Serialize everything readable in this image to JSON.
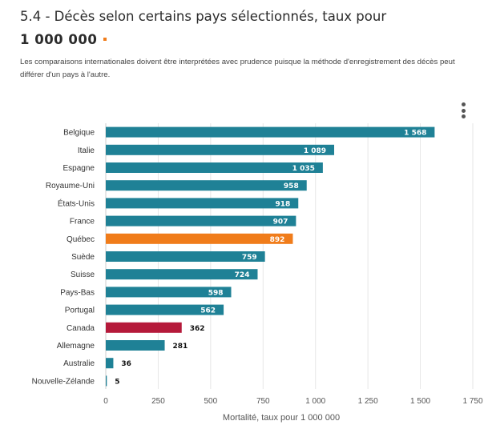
{
  "header": {
    "title_text": "5.4 - Décès selon certains pays sélectionnés, taux pour",
    "title_number": "1 000 000",
    "description": "Les comparaisons internationales doivent être interprétées avec prudence puisque la méthode d'enregistrement des décès peut différer d'un pays à l'autre.",
    "marker_color": "#f07c1a"
  },
  "menu": {
    "icon": "kebab-menu-icon"
  },
  "chart_data": {
    "type": "bar",
    "orientation": "horizontal",
    "categories": [
      "Belgique",
      "Italie",
      "Espagne",
      "Royaume-Uni",
      "États-Unis",
      "France",
      "Québec",
      "Suède",
      "Suisse",
      "Pays-Bas",
      "Portugal",
      "Canada",
      "Allemagne",
      "Australie",
      "Nouvelle-Zélande"
    ],
    "values": [
      1568,
      1089,
      1035,
      958,
      918,
      907,
      892,
      759,
      724,
      598,
      562,
      362,
      281,
      36,
      5
    ],
    "value_labels": [
      "1 568",
      "1 089",
      "1 035",
      "958",
      "918",
      "907",
      "892",
      "759",
      "724",
      "598",
      "562",
      "362",
      "281",
      "36",
      "5"
    ],
    "colors": [
      "#1f8196",
      "#1f8196",
      "#1f8196",
      "#1f8196",
      "#1f8196",
      "#1f8196",
      "#f07c1a",
      "#1f8196",
      "#1f8196",
      "#1f8196",
      "#1f8196",
      "#b5193a",
      "#1f8196",
      "#1f8196",
      "#1f8196"
    ],
    "xlabel": "Mortalité, taux pour 1 000 000",
    "xlim": [
      0,
      1750
    ],
    "ticks": [
      0,
      250,
      500,
      750,
      1000,
      1250,
      1500,
      1750
    ],
    "tick_labels": [
      "0",
      "250",
      "500",
      "750",
      "1 000",
      "1 250",
      "1 500",
      "1 750"
    ],
    "grid": true
  }
}
